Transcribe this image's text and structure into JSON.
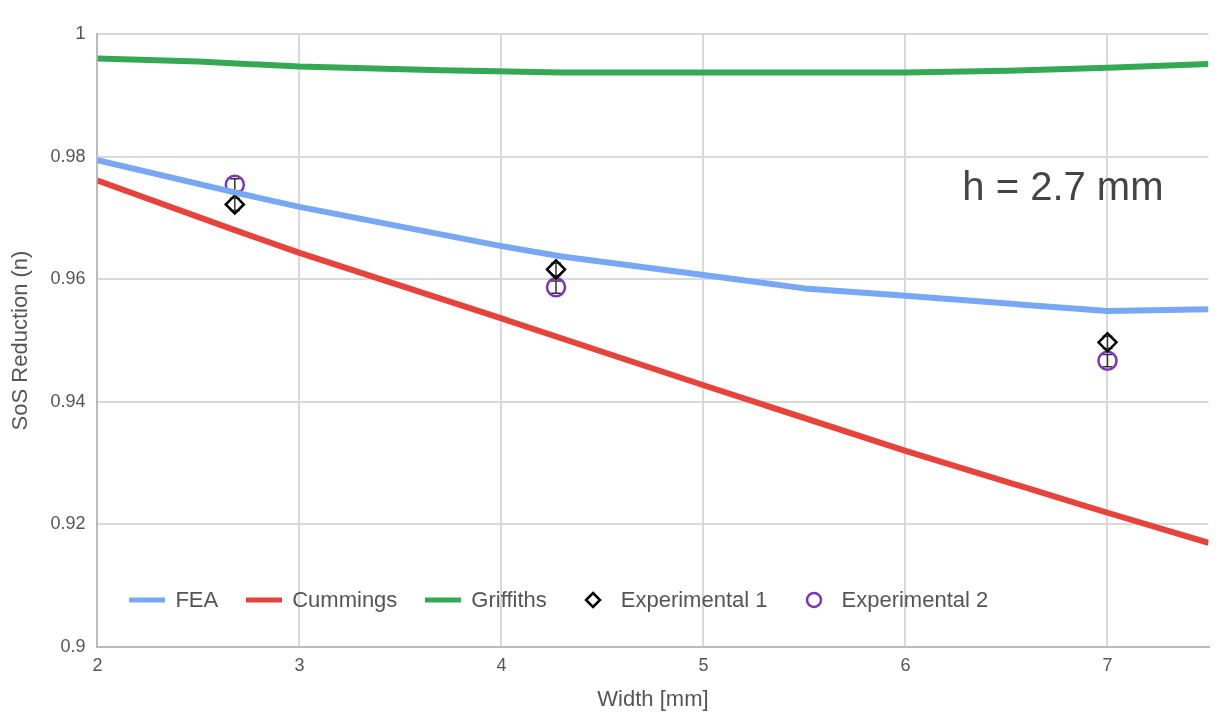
{
  "chart_data": {
    "type": "line",
    "xlabel": "Width [mm]",
    "ylabel": "SoS Reduction (n)",
    "xlim": [
      2,
      7.5
    ],
    "xticks": [
      2,
      3,
      4,
      5,
      6,
      7
    ],
    "ylim": [
      0.9,
      1
    ],
    "yticks": [
      0.9,
      0.92,
      0.94,
      0.96,
      0.98,
      1
    ],
    "grid": true,
    "legend": "bottom",
    "annotations": [
      "h = 2.7 mm"
    ],
    "series": [
      {
        "name": "FEA",
        "color": "#77a7f5",
        "x": [
          2,
          2.7,
          3,
          4,
          4.3,
          5,
          5.5,
          6,
          7,
          7.5
        ],
        "values": [
          0.9794,
          0.974,
          0.9718,
          0.9654,
          0.9637,
          0.9607,
          0.9585,
          0.9573,
          0.9548,
          0.9551
        ]
      },
      {
        "name": "Cummings",
        "color": "#e8433a",
        "x": [
          2,
          2.68,
          3,
          4,
          5,
          6,
          7,
          7.5
        ],
        "values": [
          0.9761,
          0.968,
          0.9643,
          0.9536,
          0.9427,
          0.932,
          0.9219,
          0.917
        ]
      },
      {
        "name": "Griffiths",
        "color": "#34a853",
        "x": [
          2,
          2.5,
          3,
          3.7,
          4.3,
          5,
          6,
          6.5,
          7,
          7.5
        ],
        "values": [
          0.996,
          0.9955,
          0.9947,
          0.9941,
          0.9937,
          0.9937,
          0.9937,
          0.994,
          0.9945,
          0.9951
        ]
      },
      {
        "name": "Experimental 1",
        "type": "scatter",
        "marker": "diamond",
        "color": "#000000",
        "x": [
          2.68,
          4.27,
          7
        ],
        "values": [
          0.9722,
          0.9616,
          0.9497
        ],
        "errors": [
          0.001,
          0.001,
          0.001
        ]
      },
      {
        "name": "Experimental 2",
        "type": "scatter",
        "marker": "circle",
        "color": "#7b35b5",
        "x": [
          2.68,
          4.27,
          7
        ],
        "values": [
          0.9754,
          0.9587,
          0.9467
        ],
        "errors": [
          0.001,
          0.001,
          0.001
        ]
      }
    ]
  }
}
